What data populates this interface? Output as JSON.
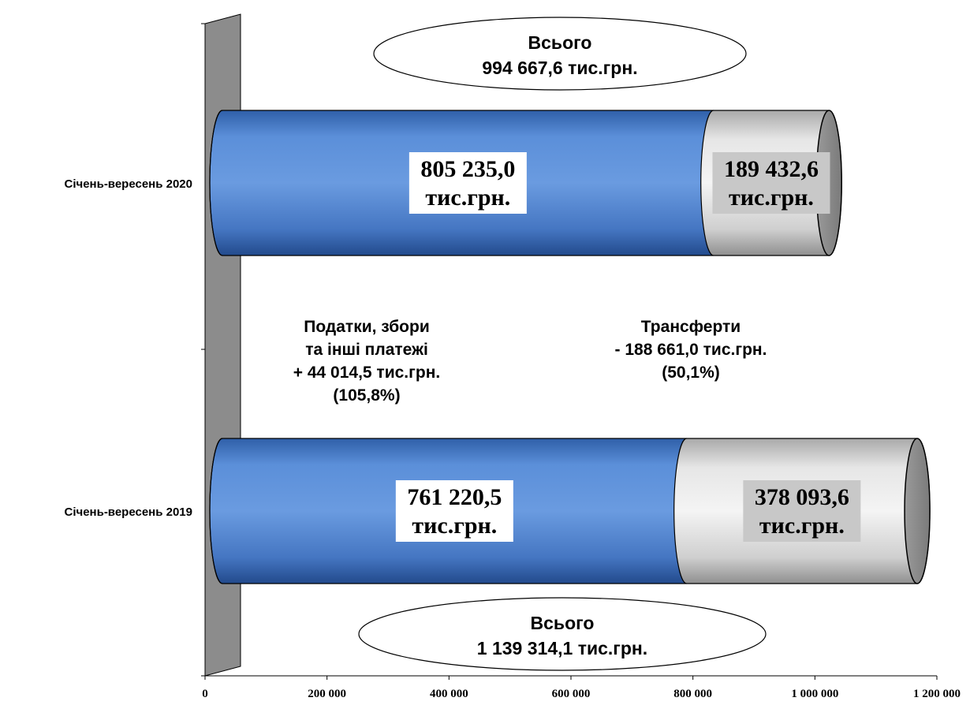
{
  "chart_data": {
    "type": "bar",
    "orientation": "horizontal",
    "stacked": true,
    "categories": [
      "Січень-вересень 2020",
      "Січень-вересень 2019"
    ],
    "series": [
      {
        "values": [
          805235.0,
          761220.5
        ],
        "labels": [
          "805 235,0|тис.грн.",
          "761 220,5|тис.грн."
        ],
        "color": "#5b8fd9",
        "label_bg": "#ffffff"
      },
      {
        "values": [
          189432.6,
          378093.6
        ],
        "labels": [
          "189 432,6|тис.грн.",
          "378 093,6|тис.грн."
        ],
        "color": "#e8e8e8",
        "label_bg": "#c8c8c8"
      }
    ],
    "xlim": [
      0,
      1200000
    ],
    "xticks": [
      0,
      200000,
      400000,
      600000,
      800000,
      1000000,
      1200000
    ],
    "xtick_labels": [
      "0",
      "200 000",
      "400 000",
      "600 000",
      "800 000",
      "1 000 000",
      "1 200 000"
    ],
    "totals": [
      {
        "category": "Січень-вересень 2020",
        "lines": [
          "Всього",
          "994 667,6 тис.грн."
        ]
      },
      {
        "category": "Січень-вересень 2019",
        "lines": [
          "Всього",
          "1 139 314,1 тис.грн."
        ]
      }
    ],
    "annotations": [
      {
        "name": "taxes-annotation",
        "lines": [
          "Податки, збори",
          "та інші платежі",
          "+ 44 014,5 тис.грн.",
          "(105,8%)"
        ]
      },
      {
        "name": "transfers-annotation",
        "lines": [
          "Трансферти",
          "- 188 661,0 тис.грн.",
          "(50,1%)"
        ]
      }
    ],
    "grid": false,
    "legend": false
  }
}
